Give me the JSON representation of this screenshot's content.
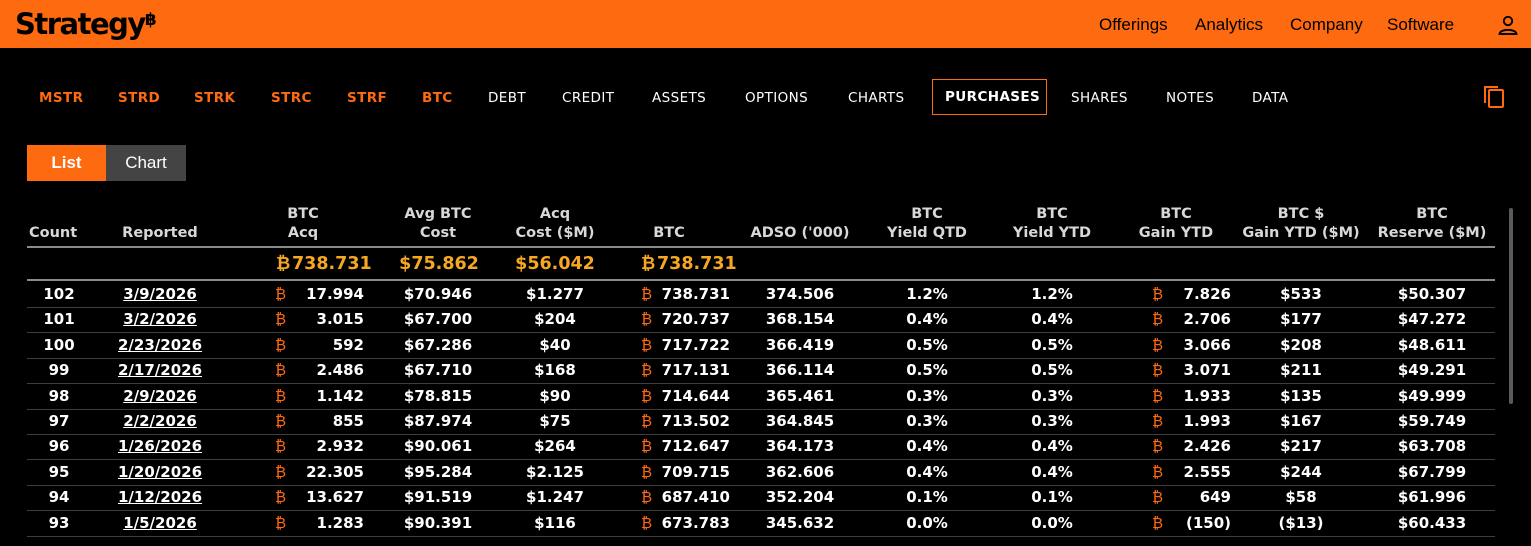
{
  "brand": {
    "name": "Strategy",
    "mark": "฿",
    "accent": "#fd6a10",
    "total_color": "#f7a823"
  },
  "topnav": [
    "Offerings",
    "Analytics",
    "Company",
    "Software"
  ],
  "tabs": [
    "MSTR",
    "STRD",
    "STRK",
    "STRC",
    "STRF",
    "BTC",
    "DEBT",
    "CREDIT",
    "ASSETS",
    "OPTIONS",
    "CHARTS",
    "PURCHASES",
    "SHARES",
    "NOTES",
    "DATA"
  ],
  "active_tab": "PURCHASES",
  "view_toggle": {
    "list": "List",
    "chart": "Chart",
    "selected": "List"
  },
  "btc_symbol": "₿",
  "columns": [
    {
      "line1": "",
      "line2": "Count"
    },
    {
      "line1": "",
      "line2": "Reported"
    },
    {
      "line1": "BTC",
      "line2": "Acq"
    },
    {
      "line1": "Avg BTC",
      "line2": "Cost"
    },
    {
      "line1": "Acq",
      "line2": "Cost ($M)"
    },
    {
      "line1": "",
      "line2": "BTC"
    },
    {
      "line1": "",
      "line2": "ADSO ('000)"
    },
    {
      "line1": "BTC",
      "line2": "Yield QTD"
    },
    {
      "line1": "BTC",
      "line2": "Yield YTD"
    },
    {
      "line1": "BTC",
      "line2": "Gain YTD"
    },
    {
      "line1": "BTC $",
      "line2": "Gain YTD ($M)"
    },
    {
      "line1": "BTC",
      "line2": "Reserve ($M)"
    }
  ],
  "totals": {
    "btc_acq": "738.731",
    "avg_cost": "$75.862",
    "acq_cost": "$56.042",
    "btc": "738.731"
  },
  "rows": [
    {
      "count": "102",
      "reported": "3/9/2026",
      "btc_acq": "17.994",
      "avg_cost": "$70.946",
      "acq_cost": "$1.277",
      "btc": "738.731",
      "adso": "374.506",
      "yqtd": "1.2%",
      "yytd": "1.2%",
      "gain": "7.826",
      "gain_usd": "$533",
      "reserve": "$50.307"
    },
    {
      "count": "101",
      "reported": "3/2/2026",
      "btc_acq": "3.015",
      "avg_cost": "$67.700",
      "acq_cost": "$204",
      "btc": "720.737",
      "adso": "368.154",
      "yqtd": "0.4%",
      "yytd": "0.4%",
      "gain": "2.706",
      "gain_usd": "$177",
      "reserve": "$47.272"
    },
    {
      "count": "100",
      "reported": "2/23/2026",
      "btc_acq": "592",
      "avg_cost": "$67.286",
      "acq_cost": "$40",
      "btc": "717.722",
      "adso": "366.419",
      "yqtd": "0.5%",
      "yytd": "0.5%",
      "gain": "3.066",
      "gain_usd": "$208",
      "reserve": "$48.611"
    },
    {
      "count": "99",
      "reported": "2/17/2026",
      "btc_acq": "2.486",
      "avg_cost": "$67.710",
      "acq_cost": "$168",
      "btc": "717.131",
      "adso": "366.114",
      "yqtd": "0.5%",
      "yytd": "0.5%",
      "gain": "3.071",
      "gain_usd": "$211",
      "reserve": "$49.291"
    },
    {
      "count": "98",
      "reported": "2/9/2026",
      "btc_acq": "1.142",
      "avg_cost": "$78.815",
      "acq_cost": "$90",
      "btc": "714.644",
      "adso": "365.461",
      "yqtd": "0.3%",
      "yytd": "0.3%",
      "gain": "1.933",
      "gain_usd": "$135",
      "reserve": "$49.999"
    },
    {
      "count": "97",
      "reported": "2/2/2026",
      "btc_acq": "855",
      "avg_cost": "$87.974",
      "acq_cost": "$75",
      "btc": "713.502",
      "adso": "364.845",
      "yqtd": "0.3%",
      "yytd": "0.3%",
      "gain": "1.993",
      "gain_usd": "$167",
      "reserve": "$59.749"
    },
    {
      "count": "96",
      "reported": "1/26/2026",
      "btc_acq": "2.932",
      "avg_cost": "$90.061",
      "acq_cost": "$264",
      "btc": "712.647",
      "adso": "364.173",
      "yqtd": "0.4%",
      "yytd": "0.4%",
      "gain": "2.426",
      "gain_usd": "$217",
      "reserve": "$63.708"
    },
    {
      "count": "95",
      "reported": "1/20/2026",
      "btc_acq": "22.305",
      "avg_cost": "$95.284",
      "acq_cost": "$2.125",
      "btc": "709.715",
      "adso": "362.606",
      "yqtd": "0.4%",
      "yytd": "0.4%",
      "gain": "2.555",
      "gain_usd": "$244",
      "reserve": "$67.799"
    },
    {
      "count": "94",
      "reported": "1/12/2026",
      "btc_acq": "13.627",
      "avg_cost": "$91.519",
      "acq_cost": "$1.247",
      "btc": "687.410",
      "adso": "352.204",
      "yqtd": "0.1%",
      "yytd": "0.1%",
      "gain": "649",
      "gain_usd": "$58",
      "reserve": "$61.996"
    },
    {
      "count": "93",
      "reported": "1/5/2026",
      "btc_acq": "1.283",
      "avg_cost": "$90.391",
      "acq_cost": "$116",
      "btc": "673.783",
      "adso": "345.632",
      "yqtd": "0.0%",
      "yytd": "0.0%",
      "gain": "(150)",
      "gain_usd": "($13)",
      "reserve": "$60.433"
    }
  ]
}
